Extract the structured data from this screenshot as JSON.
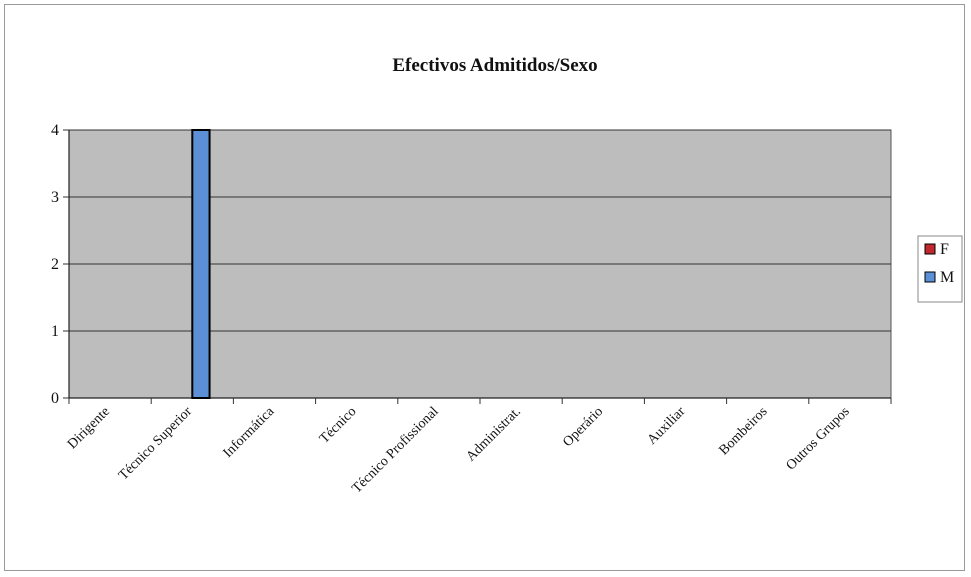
{
  "chart_data": {
    "type": "bar",
    "title": "Efectivos Admitidos/Sexo",
    "xlabel": "",
    "ylabel": "",
    "categories": [
      "Dirigente",
      "Técnico Superior",
      "Informática",
      "Técnico",
      "Técnico Profissional",
      "Administrat.",
      "Operário",
      "Auxiliar",
      "Bombeiros",
      "Outros Grupos"
    ],
    "series": [
      {
        "name": "F",
        "values": [
          0,
          0,
          0,
          0,
          0,
          0,
          0,
          0,
          0,
          0
        ],
        "color": "#c0282d"
      },
      {
        "name": "M",
        "values": [
          0,
          4,
          0,
          0,
          0,
          0,
          0,
          0,
          0,
          0
        ],
        "color": "#5b8fd6"
      }
    ],
    "ylim": [
      0,
      4
    ],
    "yticks": [
      0,
      1,
      2,
      3,
      4
    ],
    "grid": true,
    "legend": "right",
    "plot_background": "#bdbdbd"
  }
}
